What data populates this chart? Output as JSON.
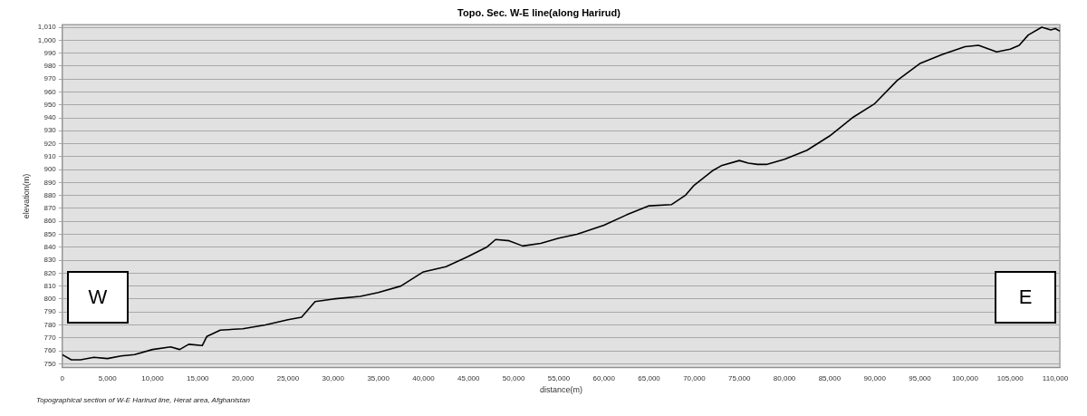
{
  "chart_data": {
    "type": "line",
    "title": "Topo. Sec. W-E line(along Harirud)",
    "xlabel": "distance(m)",
    "ylabel": "elevation(m)",
    "x": [
      0,
      1000,
      2000,
      3500,
      5000,
      6500,
      8000,
      10000,
      12000,
      13000,
      14000,
      15500,
      16000,
      17500,
      20000,
      22500,
      25000,
      26500,
      28000,
      30000,
      33000,
      35000,
      37500,
      40000,
      42500,
      45000,
      47000,
      48000,
      49500,
      51000,
      53000,
      55000,
      57000,
      60000,
      62500,
      65000,
      67500,
      69000,
      70000,
      72000,
      73000,
      75000,
      76000,
      77000,
      78000,
      80000,
      82500,
      85000,
      87500,
      90000,
      92500,
      95000,
      97500,
      100000,
      101500,
      103500,
      105000,
      106000,
      107000,
      108500,
      109500,
      110000,
      110500
    ],
    "series": [
      {
        "color": "#000000",
        "values": [
          757,
          753,
          753,
          755,
          754,
          756,
          757,
          761,
          763,
          761,
          765,
          764,
          771,
          776,
          777,
          780,
          784,
          786,
          798,
          800,
          802,
          805,
          810,
          821,
          825,
          833,
          840,
          846,
          845,
          841,
          843,
          847,
          850,
          857,
          865,
          872,
          873,
          880,
          888,
          899,
          903,
          907,
          905,
          904,
          904,
          908,
          915,
          926,
          940,
          951,
          969,
          982,
          989,
          995,
          996,
          991,
          993,
          996,
          1004,
          1010,
          1008,
          1009,
          1007
        ]
      }
    ],
    "xlim": [
      0,
      110500
    ],
    "ylim": [
      747,
      1012
    ],
    "xticks": [
      0,
      {
        "value": 5000,
        "label": "5,000"
      },
      {
        "value": 10000,
        "label": "10,000"
      },
      {
        "value": 15000,
        "label": "15,000"
      },
      {
        "value": 20000,
        "label": "20,000"
      },
      {
        "value": 25000,
        "label": "25,000"
      },
      {
        "value": 30000,
        "label": "30,000"
      },
      {
        "value": 35000,
        "label": "35,000"
      },
      {
        "value": 40000,
        "label": "40,000"
      },
      {
        "value": 45000,
        "label": "45,000"
      },
      {
        "value": 50000,
        "label": "50,000"
      },
      {
        "value": 55000,
        "label": "55,000"
      },
      {
        "value": 60000,
        "label": "60,000"
      },
      {
        "value": 65000,
        "label": "65,000"
      },
      {
        "value": 70000,
        "label": "70,000"
      },
      {
        "value": 75000,
        "label": "75,000"
      },
      {
        "value": 80000,
        "label": "80,000"
      },
      {
        "value": 85000,
        "label": "85,000"
      },
      {
        "value": 90000,
        "label": "90,000"
      },
      {
        "value": 95000,
        "label": "95,000"
      },
      {
        "value": 100000,
        "label": "100,000"
      },
      {
        "value": 105000,
        "label": "105,000"
      },
      {
        "value": 110000,
        "label": "110,000"
      }
    ],
    "yticks": [
      750,
      760,
      770,
      780,
      790,
      800,
      810,
      820,
      830,
      840,
      850,
      860,
      870,
      880,
      890,
      900,
      910,
      920,
      930,
      940,
      950,
      960,
      970,
      980,
      990,
      {
        "value": 1000,
        "label": "1,000"
      },
      {
        "value": 1010,
        "label": "1,010"
      }
    ],
    "grid": "y",
    "marker": "none",
    "line_style": "solid",
    "legend": false,
    "annotations": [
      "W",
      "E",
      "Topographical section of W-E Harirud  line, Herat area, Afghanistan"
    ]
  }
}
